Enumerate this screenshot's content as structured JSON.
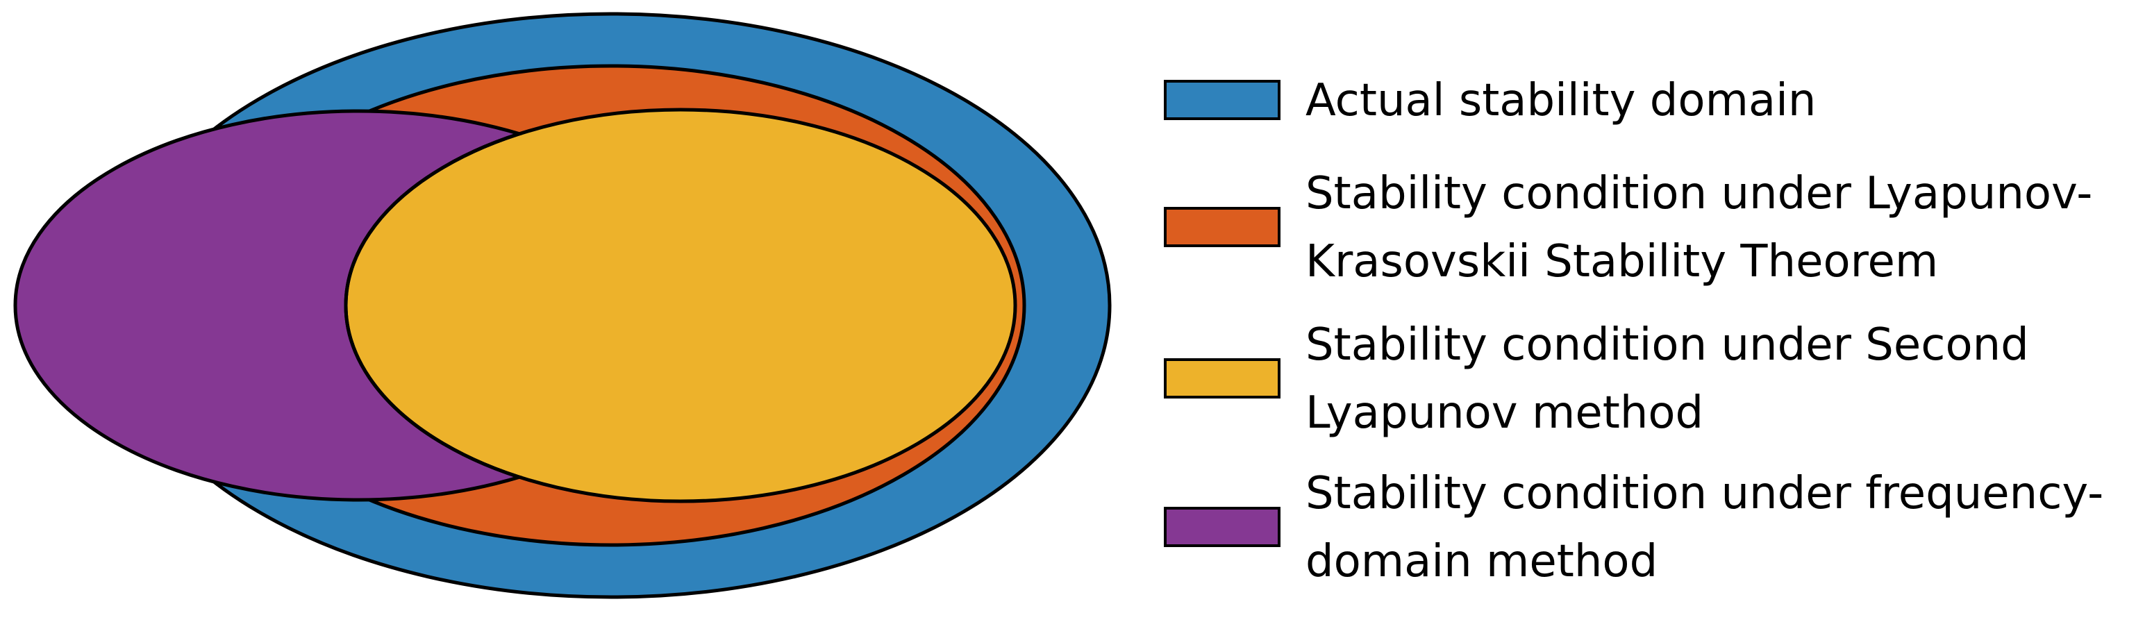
{
  "colors": {
    "actual": "#2f82bb",
    "lyapunov_krasovskii": "#dc5d1f",
    "second_lyapunov": "#edb22b",
    "frequency_domain": "#853893",
    "outline": "#000000"
  },
  "legend": {
    "items": [
      {
        "key": "actual",
        "lines": [
          "Actual stability domain"
        ]
      },
      {
        "key": "lyapunov_krasovskii",
        "lines": [
          "Stability condition under Lyapunov-",
          "Krasovskii Stability Theorem"
        ]
      },
      {
        "key": "second_lyapunov",
        "lines": [
          "Stability condition under Second",
          "Lyapunov method"
        ]
      },
      {
        "key": "frequency_domain",
        "lines": [
          "Stability condition under frequency-",
          "domain method"
        ]
      }
    ]
  }
}
